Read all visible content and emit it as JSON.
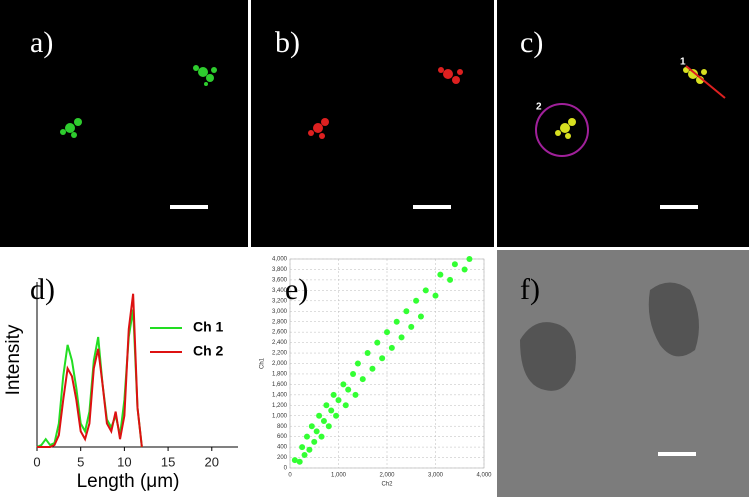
{
  "panels": [
    {
      "label": "a)"
    },
    {
      "label": "b)"
    },
    {
      "label": "c)",
      "annotations": [
        "1",
        "2"
      ]
    },
    {
      "label": "d)"
    },
    {
      "label": "e)"
    },
    {
      "label": "f)"
    }
  ],
  "chart_data": [
    {
      "type": "line",
      "xlabel": "Length (μm)",
      "ylabel": "Intensity",
      "x": [
        0,
        0.5,
        1,
        1.5,
        2,
        2.5,
        3,
        3.5,
        4,
        4.5,
        5,
        5.5,
        6,
        6.5,
        7,
        7.5,
        8,
        8.5,
        9,
        9.5,
        10,
        10.5,
        11,
        11.5,
        12
      ],
      "series": [
        {
          "name": "Ch 1",
          "color": "#22dd22",
          "values": [
            0,
            0.05,
            0.2,
            0.05,
            0.1,
            0.6,
            1.8,
            2.6,
            2.2,
            1.5,
            0.6,
            0.4,
            0.9,
            2.2,
            2.8,
            1.6,
            0.7,
            0.5,
            0.8,
            0.3,
            1.2,
            2.8,
            3.5,
            1.0,
            0
          ]
        },
        {
          "name": "Ch 2",
          "color": "#dd1111",
          "values": [
            0,
            0,
            0,
            0,
            0.05,
            0.3,
            1.2,
            2.0,
            1.8,
            1.2,
            0.4,
            0.2,
            0.6,
            2.0,
            2.5,
            1.6,
            0.6,
            0.4,
            0.9,
            0.2,
            0.8,
            3.0,
            3.9,
            1.0,
            0
          ]
        }
      ],
      "xlim": [
        0,
        23
      ],
      "xticks": [
        0,
        5,
        10,
        15,
        20
      ],
      "ylim": [
        0,
        4.2
      ]
    },
    {
      "type": "scatter",
      "xlabel": "Ch2",
      "ylabel": "Ch1",
      "color": "#33ff33",
      "grid": true,
      "x": [
        100,
        200,
        250,
        300,
        350,
        400,
        450,
        500,
        550,
        600,
        650,
        700,
        750,
        800,
        850,
        900,
        950,
        1000,
        1100,
        1150,
        1200,
        1300,
        1350,
        1400,
        1500,
        1600,
        1700,
        1800,
        1900,
        2000,
        2100,
        2200,
        2300,
        2400,
        2500,
        2600,
        2700,
        2800,
        3000,
        3100,
        3300,
        3400,
        3600,
        3700
      ],
      "values": [
        150,
        120,
        400,
        250,
        600,
        350,
        800,
        500,
        700,
        1000,
        600,
        900,
        1200,
        800,
        1100,
        1400,
        1000,
        1300,
        1600,
        1200,
        1500,
        1800,
        1400,
        2000,
        1700,
        2200,
        1900,
        2400,
        2100,
        2600,
        2300,
        2800,
        2500,
        3000,
        2700,
        3200,
        2900,
        3400,
        3300,
        3700,
        3600,
        3900,
        3800,
        4000
      ],
      "xlim": [
        0,
        4000
      ],
      "xticks": [
        0,
        {
          "value": 1000,
          "label": "1,000"
        },
        {
          "value": 2000,
          "label": "2,000"
        },
        {
          "value": 3000,
          "label": "3,000"
        },
        {
          "value": 4000,
          "label": "4,000"
        }
      ],
      "ylim": [
        0,
        4000
      ],
      "yticks": [
        0,
        200,
        400,
        600,
        800,
        {
          "value": 1000,
          "label": "1,000"
        },
        {
          "value": 1200,
          "label": "1,200"
        },
        {
          "value": 1400,
          "label": "1,400"
        },
        {
          "value": 1600,
          "label": "1,600"
        },
        {
          "value": 1800,
          "label": "1,800"
        },
        {
          "value": 2000,
          "label": "2,000"
        },
        {
          "value": 2200,
          "label": "2,200"
        },
        {
          "value": 2400,
          "label": "2,400"
        },
        {
          "value": 2600,
          "label": "2,600"
        },
        {
          "value": 2800,
          "label": "2,800"
        },
        {
          "value": 3000,
          "label": "3,000"
        },
        {
          "value": 3200,
          "label": "3,200"
        },
        {
          "value": 3400,
          "label": "3,400"
        },
        {
          "value": 3600,
          "label": "3,600"
        },
        {
          "value": 3800,
          "label": "3,800"
        },
        {
          "value": 4000,
          "label": "4,000"
        }
      ]
    }
  ]
}
